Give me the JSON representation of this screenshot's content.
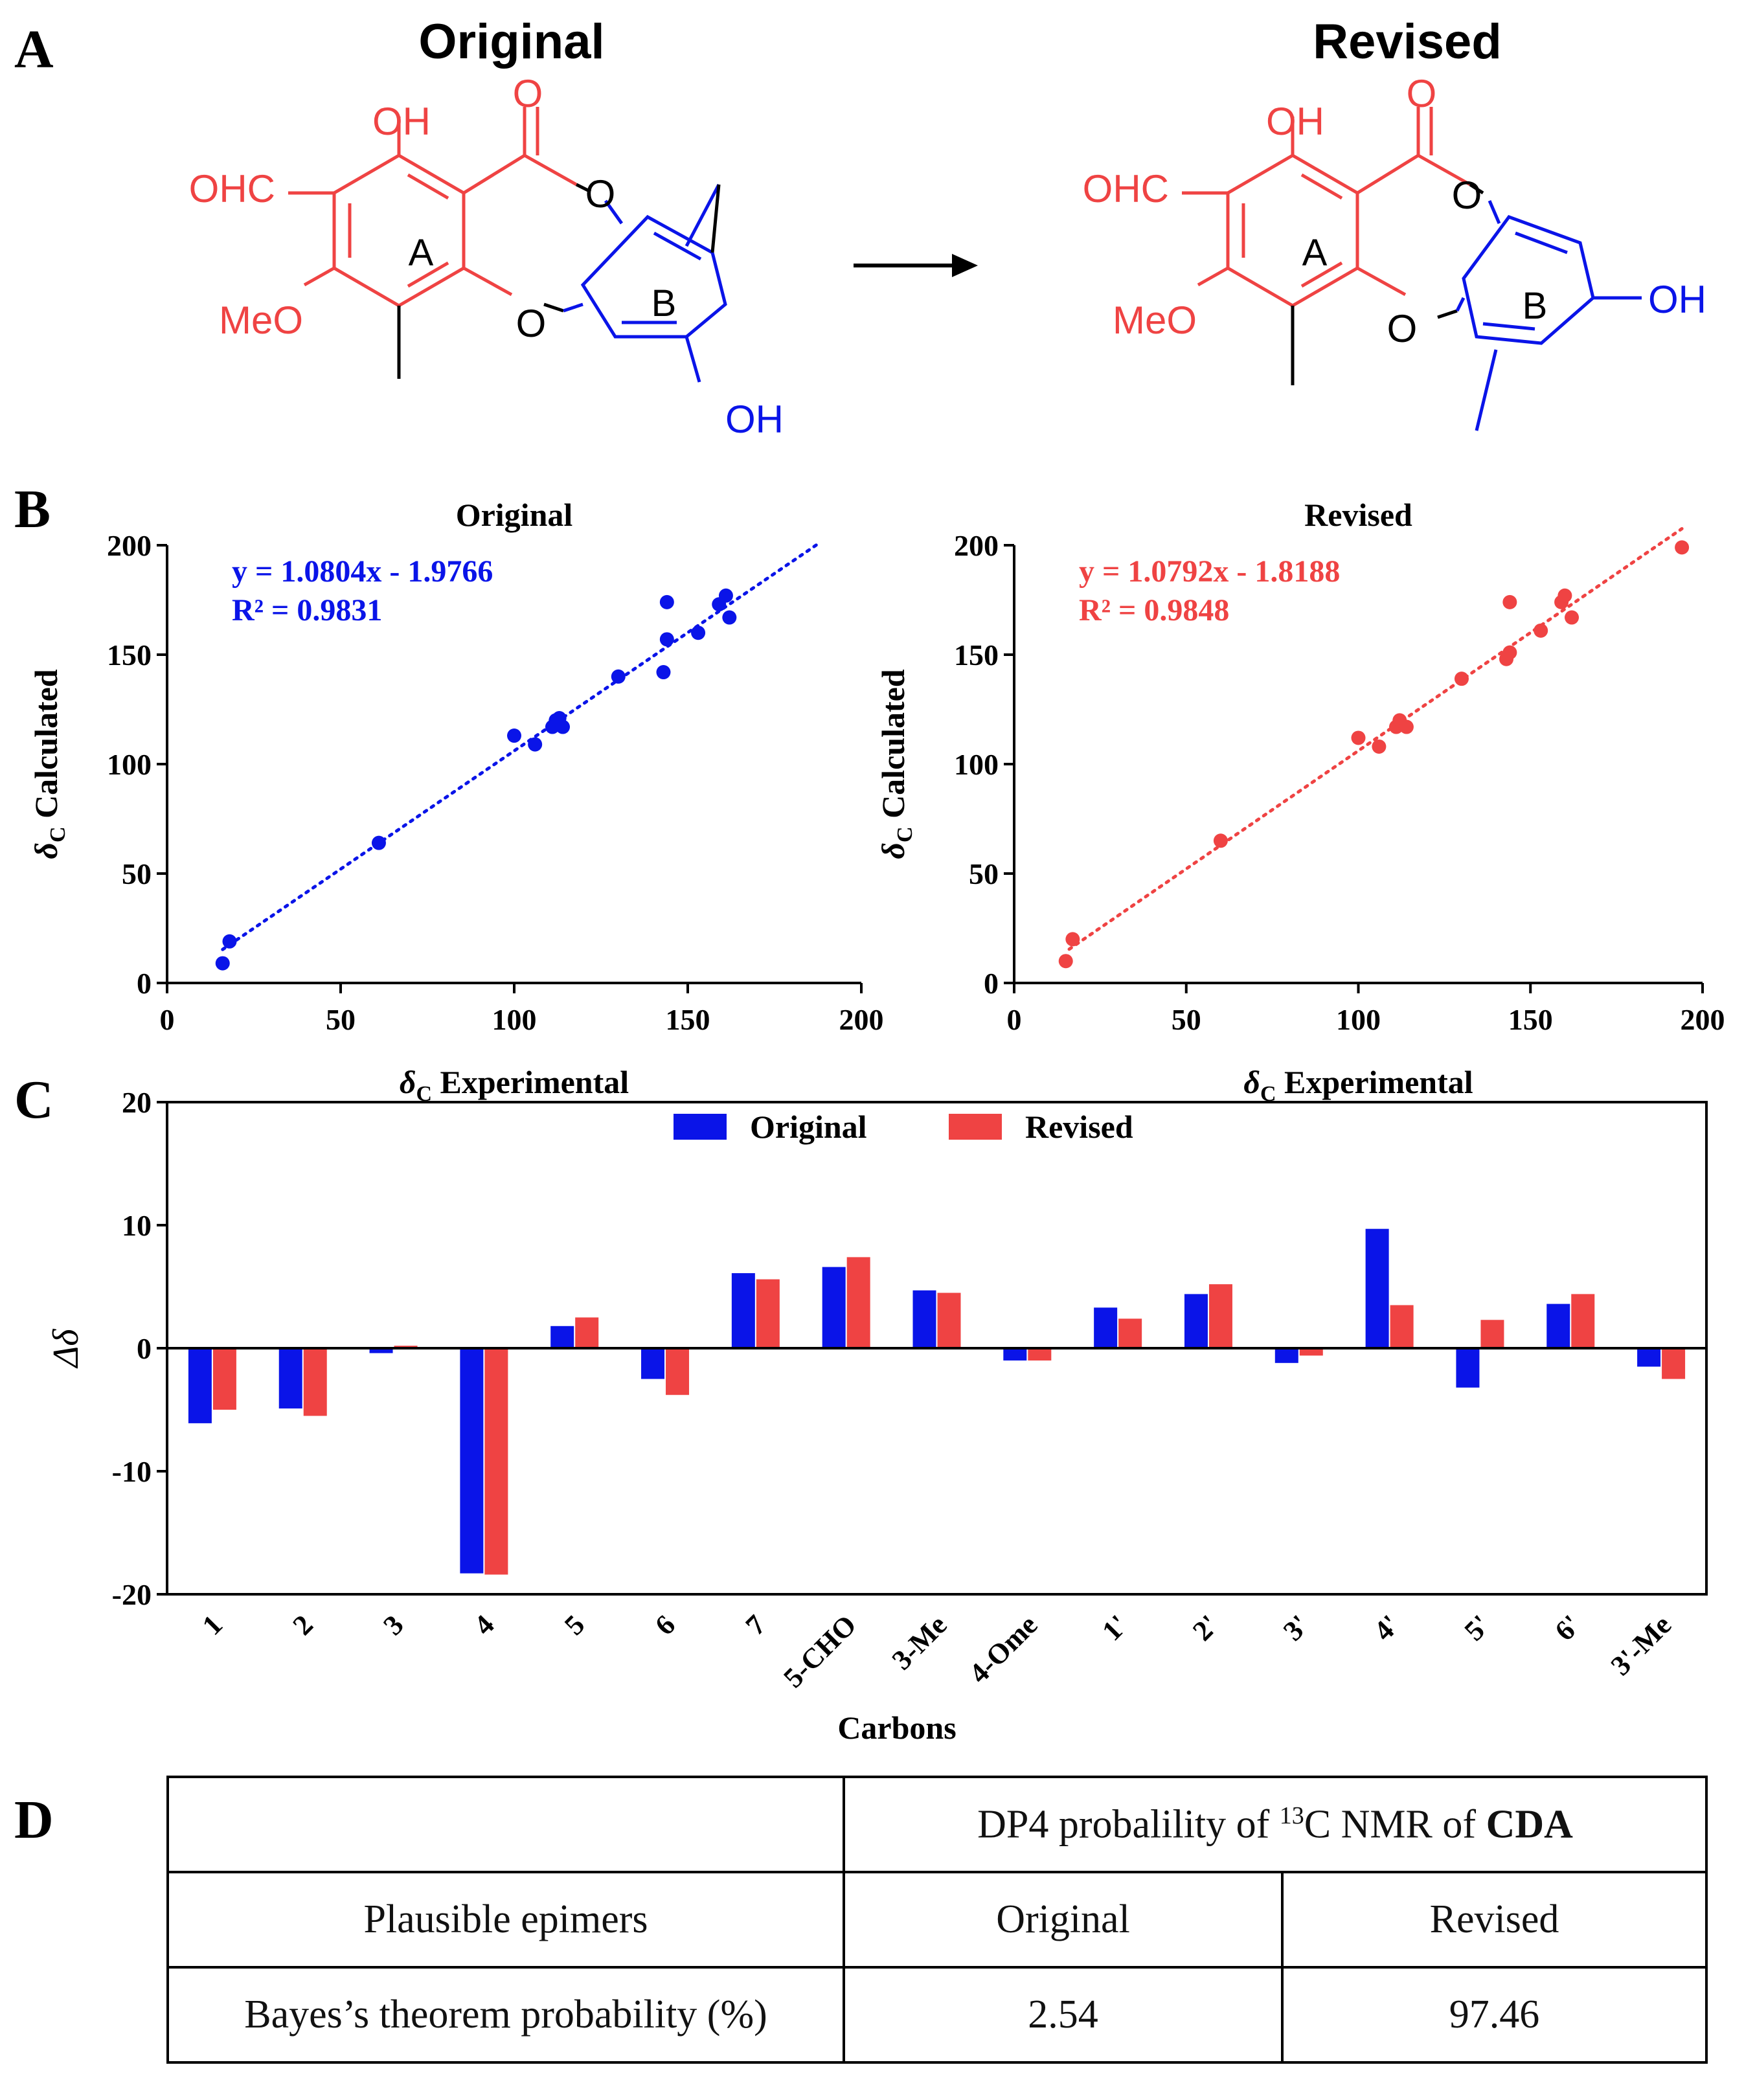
{
  "colors": {
    "original": "#0a14e8",
    "revised": "#ef4343",
    "ink": "#000000"
  },
  "panel_a": {
    "letter": "A",
    "original_title": "Original",
    "revised_title": "Revised",
    "labels": {
      "oh": "OH",
      "ohc": "OHC",
      "meo": "MeO",
      "o": "O",
      "ring_a": "A",
      "ring_b": "B"
    }
  },
  "panel_b_letter": "B",
  "panel_c_letter": "C",
  "panel_d_letter": "D",
  "chart_data": [
    {
      "type": "scatter",
      "title": "Original",
      "xlabel": "Experimental",
      "ylabel": "Calculated",
      "axis_symbol": "δ",
      "axis_subscript": "C",
      "xlim": [
        0,
        200
      ],
      "ylim": [
        0,
        200
      ],
      "xticks": [
        "0",
        "50",
        "100",
        "150",
        "200"
      ],
      "yticks": [
        "0",
        "50",
        "100",
        "150",
        "200"
      ],
      "equation": "y = 1.0804x - 1.9766",
      "r2": "R² = 0.9831",
      "trend": {
        "slope": 1.0804,
        "intercept": -1.9766,
        "x_range": [
          16,
          187
        ]
      },
      "color": "#0a14e8",
      "points": [
        [
          16,
          9
        ],
        [
          18,
          19
        ],
        [
          61,
          64
        ],
        [
          100,
          113
        ],
        [
          106,
          109
        ],
        [
          111,
          117
        ],
        [
          112,
          120
        ],
        [
          113,
          121
        ],
        [
          114,
          117
        ],
        [
          130,
          140
        ],
        [
          143,
          142
        ],
        [
          144,
          174
        ],
        [
          144,
          157
        ],
        [
          153,
          160
        ],
        [
          159,
          173
        ],
        [
          161,
          177
        ],
        [
          162,
          167
        ]
      ]
    },
    {
      "type": "scatter",
      "title": "Revised",
      "xlabel": "Experimental",
      "ylabel": "Calculated",
      "axis_symbol": "δ",
      "axis_subscript": "C",
      "xlim": [
        0,
        200
      ],
      "ylim": [
        0,
        200
      ],
      "xticks": [
        "0",
        "50",
        "100",
        "150",
        "200"
      ],
      "yticks": [
        "0",
        "50",
        "100",
        "150",
        "200"
      ],
      "equation": "y = 1.0792x - 1.8188",
      "r2": "R² = 0.9848",
      "trend": {
        "slope": 1.0792,
        "intercept": -1.8188,
        "x_range": [
          16,
          194
        ]
      },
      "color": "#ef4343",
      "points": [
        [
          15,
          10
        ],
        [
          17,
          20
        ],
        [
          60,
          65
        ],
        [
          100,
          112
        ],
        [
          106,
          108
        ],
        [
          111,
          117
        ],
        [
          112,
          120
        ],
        [
          114,
          117
        ],
        [
          130,
          139
        ],
        [
          143,
          148
        ],
        [
          144,
          151
        ],
        [
          144,
          174
        ],
        [
          153,
          161
        ],
        [
          159,
          174
        ],
        [
          160,
          177
        ],
        [
          162,
          167
        ],
        [
          194,
          199
        ]
      ]
    },
    {
      "type": "bar",
      "title": "",
      "xlabel": "Carbons",
      "ylabel": "Δδ",
      "ylim": [
        -20,
        20
      ],
      "yticks": [
        "20",
        "10",
        "0",
        "-10",
        "-20"
      ],
      "legend_position": "top-center",
      "categories": [
        "1",
        "2",
        "3",
        "4",
        "5",
        "6",
        "7",
        "5-CHO",
        "3-Me",
        "4-Ome",
        "1'",
        "2'",
        "3'",
        "4'",
        "5'",
        "6'",
        "3'-Me"
      ],
      "series": [
        {
          "name": "Original",
          "color": "#0a14e8",
          "values": [
            -6.1,
            -4.9,
            -0.4,
            -18.3,
            1.8,
            -2.5,
            6.1,
            6.6,
            4.7,
            -1.0,
            3.3,
            4.4,
            -1.2,
            9.7,
            -3.2,
            3.6,
            -1.5
          ]
        },
        {
          "name": "Revised",
          "color": "#ef4343",
          "values": [
            -5.0,
            -5.5,
            0.2,
            -18.4,
            2.5,
            -3.8,
            5.6,
            7.4,
            4.5,
            -1.0,
            2.4,
            5.2,
            -0.6,
            3.5,
            2.3,
            4.4,
            -2.5
          ]
        }
      ]
    },
    {
      "type": "table",
      "header_pre": "DP4 probalility of ",
      "header_sup": "13",
      "header_mid": "C NMR of ",
      "header_bold": "CDA",
      "row1": [
        "Plausible epimers",
        "Original",
        "Revised"
      ],
      "row2": [
        "Bayes’s theorem probability (%)",
        "2.54",
        "97.46"
      ]
    }
  ]
}
